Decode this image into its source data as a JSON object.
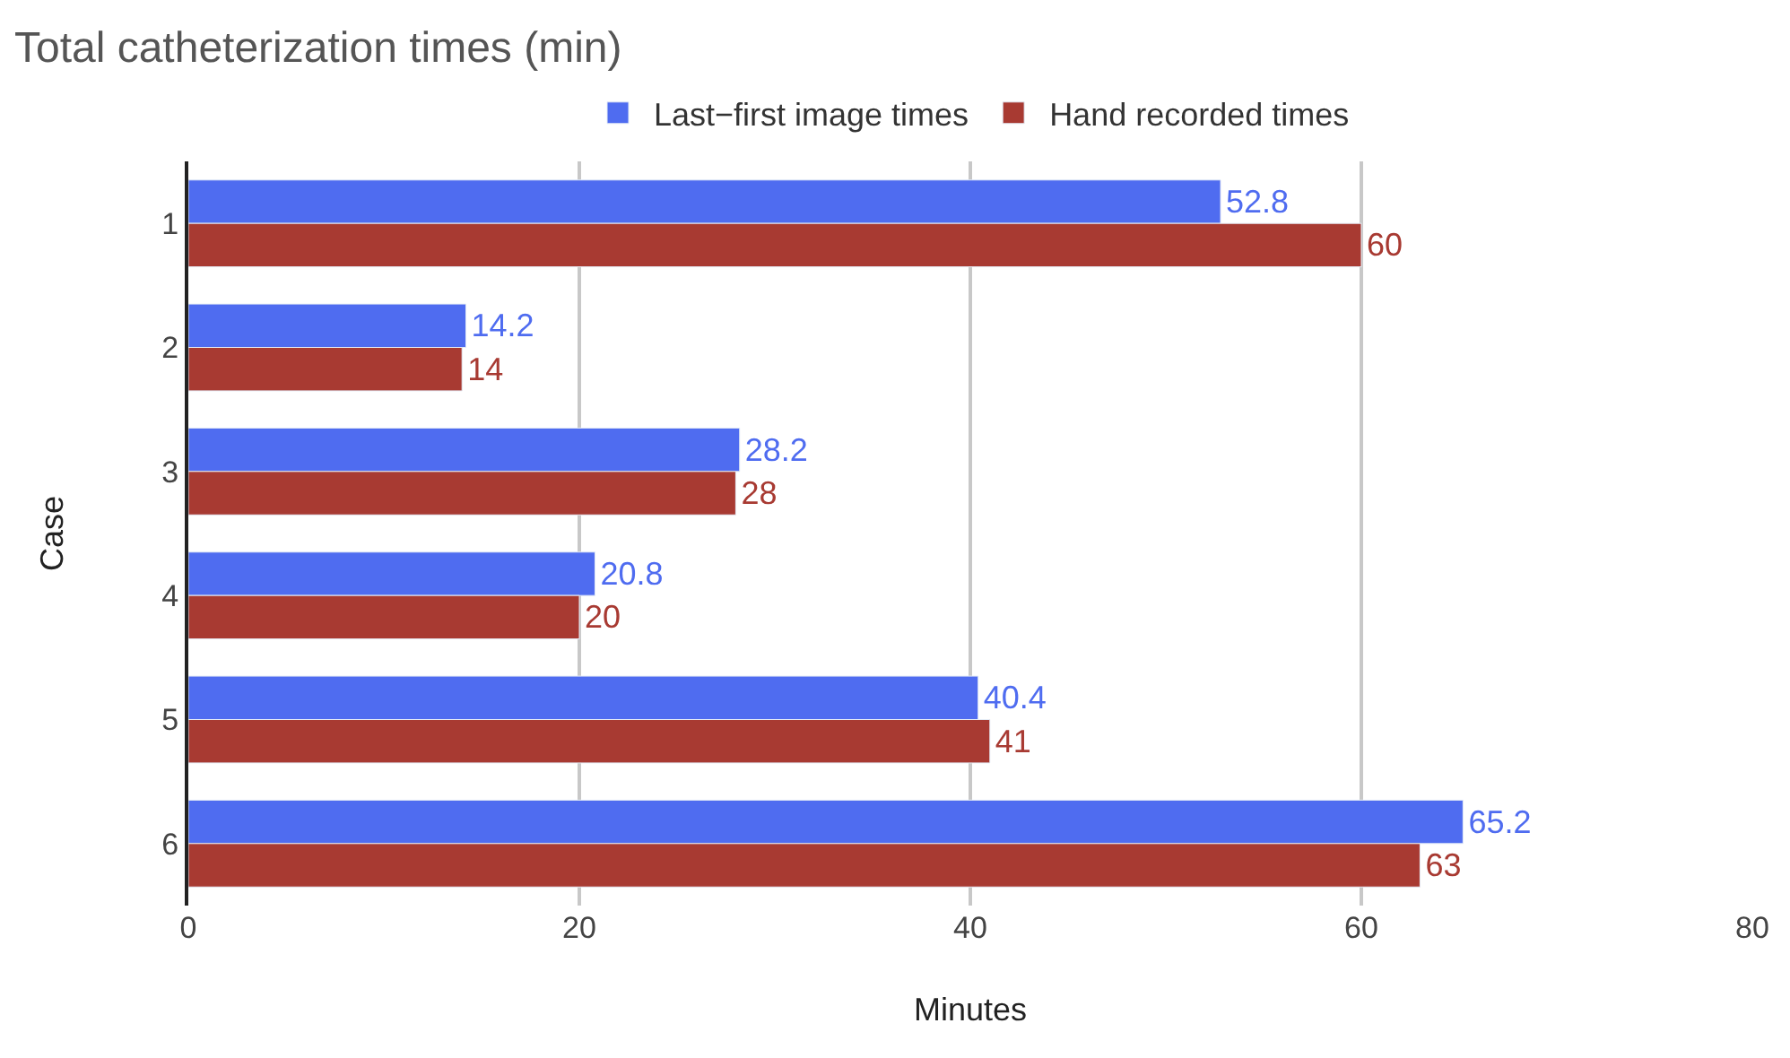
{
  "chart_data": {
    "type": "bar",
    "orientation": "horizontal",
    "title": "Total catheterization times (min)",
    "xlabel": "Minutes",
    "ylabel": "Case",
    "categories": [
      "1",
      "2",
      "3",
      "4",
      "5",
      "6"
    ],
    "series": [
      {
        "name": "Last−first image times",
        "color": "#4f6cf0",
        "values": [
          52.8,
          14.2,
          28.2,
          20.8,
          40.4,
          65.2
        ]
      },
      {
        "name": "Hand recorded times",
        "color": "#a83a32",
        "values": [
          60,
          14,
          28,
          20,
          41,
          63
        ]
      }
    ],
    "xlim": [
      0,
      80
    ],
    "xticks": [
      0,
      20,
      40,
      60,
      80
    ],
    "grid": "x",
    "legend": "top",
    "data_labels": true
  }
}
